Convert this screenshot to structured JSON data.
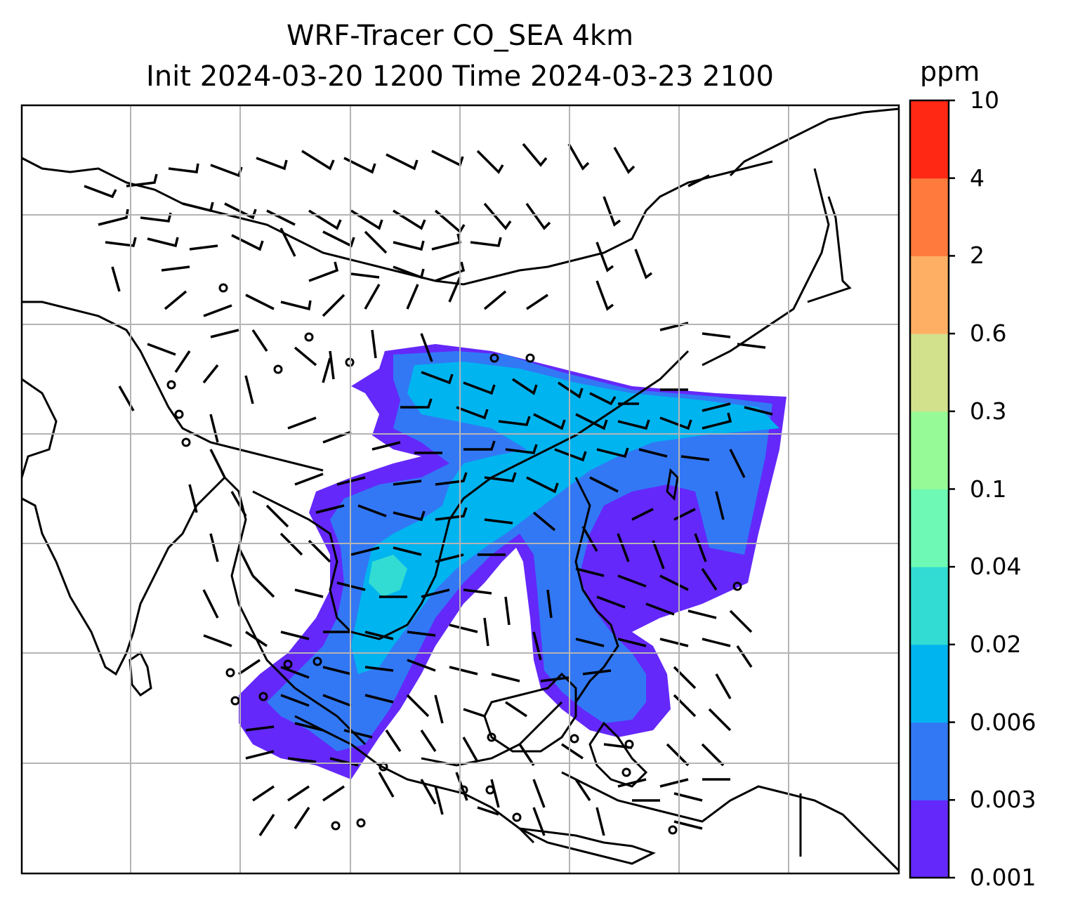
{
  "title": {
    "line1": "WRF-Tracer CO_SEA 4km",
    "line2": "Init 2024-03-20 1200 Time 2024-03-23 2100"
  },
  "colorbar": {
    "unit": "ppm",
    "levels": [
      "0.001",
      "0.003",
      "0.006",
      "0.02",
      "0.04",
      "0.1",
      "0.3",
      "0.6",
      "2",
      "4",
      "10"
    ],
    "colors": [
      "#6428fa",
      "#3278f5",
      "#00b4f0",
      "#32dcd2",
      "#6efab4",
      "#96fa96",
      "#d2e18c",
      "#ffaf64",
      "#ff7a3c",
      "#ff2814"
    ]
  },
  "map": {
    "gridlines": true,
    "plume_colors": {
      "level1": "#6428fa",
      "level2": "#3278f5",
      "level3": "#00b4f0",
      "level4": "#32dcd2"
    },
    "coastline_color": "#000000",
    "gridline_color": "#b4b4b4",
    "wind_barbs": true
  }
}
